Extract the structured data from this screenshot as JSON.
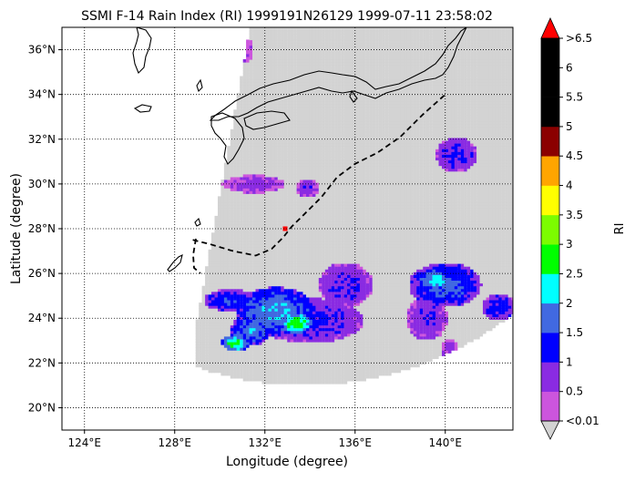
{
  "chart_data": {
    "type": "scatter",
    "title": "SSMI F-14 Rain Index (RI) 1999191N26129 1999-07-11 23:58:02",
    "xlabel": "Longitude (degree)",
    "ylabel": "Latitude (degree)",
    "xlim": [
      123,
      143
    ],
    "ylim": [
      19,
      37
    ],
    "x_ticks": [
      124,
      128,
      132,
      136,
      140
    ],
    "x_tick_labels": [
      "124°E",
      "128°E",
      "132°E",
      "136°E",
      "140°E"
    ],
    "y_ticks": [
      20,
      22,
      24,
      26,
      28,
      30,
      32,
      34,
      36
    ],
    "y_tick_labels": [
      "20°N",
      "22°N",
      "24°N",
      "26°N",
      "28°N",
      "30°N",
      "32°N",
      "34°N",
      "36°N"
    ],
    "grid": true,
    "colorbar": {
      "label": "RI",
      "tick_labels": [
        "<0.01",
        "0.5",
        "1",
        "1.5",
        "2",
        "2.5",
        "3",
        "3.5",
        "4",
        "4.5",
        "5",
        "5.5",
        "6",
        ">6.5"
      ],
      "colors": [
        "#cc55dd",
        "#8a2be2",
        "#0000ff",
        "#4169e1",
        "#00ffff",
        "#00ff00",
        "#7cfc00",
        "#ffff00",
        "#ffa500",
        "#8b0000",
        "#000000",
        "#000000",
        "#000000"
      ],
      "under_color": "#d3d3d3",
      "over_color": "#ff0000"
    },
    "track": [
      [
        128.8,
        27.5
      ],
      [
        129.6,
        27.3
      ],
      [
        130.6,
        27.0
      ],
      [
        131.6,
        26.8
      ],
      [
        132.3,
        27.1
      ],
      [
        132.8,
        27.6
      ],
      [
        133.2,
        28.1
      ],
      [
        133.7,
        28.6
      ],
      [
        134.5,
        29.4
      ],
      [
        135.2,
        30.3
      ],
      [
        136.0,
        30.9
      ],
      [
        137.0,
        31.4
      ],
      [
        138.0,
        32.1
      ],
      [
        139.0,
        33.1
      ],
      [
        140.0,
        34.0
      ]
    ],
    "track_marker": [
      132.9,
      28.0
    ],
    "rain_regions": [
      {
        "lon": 134.0,
        "lat": 23.9,
        "rlon": 2.4,
        "rlat": 1.0,
        "ri": 1.1
      },
      {
        "lon": 132.5,
        "lat": 24.3,
        "rlon": 1.8,
        "rlat": 1.1,
        "ri": 1.9
      },
      {
        "lon": 133.4,
        "lat": 23.8,
        "rlon": 0.7,
        "rlat": 0.5,
        "ri": 2.8
      },
      {
        "lon": 131.4,
        "lat": 23.5,
        "rlon": 0.9,
        "rlat": 0.7,
        "ri": 1.8
      },
      {
        "lon": 130.7,
        "lat": 22.9,
        "rlon": 0.6,
        "rlat": 0.4,
        "ri": 2.6
      },
      {
        "lon": 130.5,
        "lat": 24.8,
        "rlon": 1.2,
        "rlat": 0.5,
        "ri": 1.4
      },
      {
        "lon": 135.6,
        "lat": 25.5,
        "rlon": 1.2,
        "rlat": 1.0,
        "ri": 1.0
      },
      {
        "lon": 140.0,
        "lat": 25.5,
        "rlon": 1.6,
        "rlat": 1.0,
        "ri": 1.6
      },
      {
        "lon": 139.6,
        "lat": 25.7,
        "rlon": 0.9,
        "rlat": 0.5,
        "ri": 2.1
      },
      {
        "lon": 139.2,
        "lat": 24.0,
        "rlon": 0.9,
        "rlat": 1.0,
        "ri": 0.9
      },
      {
        "lon": 140.5,
        "lat": 31.3,
        "rlon": 0.9,
        "rlat": 0.8,
        "ri": 1.1
      },
      {
        "lon": 131.5,
        "lat": 30.0,
        "rlon": 1.4,
        "rlat": 0.4,
        "ri": 0.7
      },
      {
        "lon": 133.9,
        "lat": 29.8,
        "rlon": 0.5,
        "rlat": 0.4,
        "ri": 0.8
      },
      {
        "lon": 142.4,
        "lat": 24.5,
        "rlon": 0.8,
        "rlat": 0.6,
        "ri": 1.2
      },
      {
        "lon": 140.2,
        "lat": 22.5,
        "rlon": 0.4,
        "rlat": 0.6,
        "ri": 0.6
      },
      {
        "lon": 131.0,
        "lat": 36.0,
        "rlon": 0.5,
        "rlat": 0.6,
        "ri": 0.4
      }
    ]
  }
}
